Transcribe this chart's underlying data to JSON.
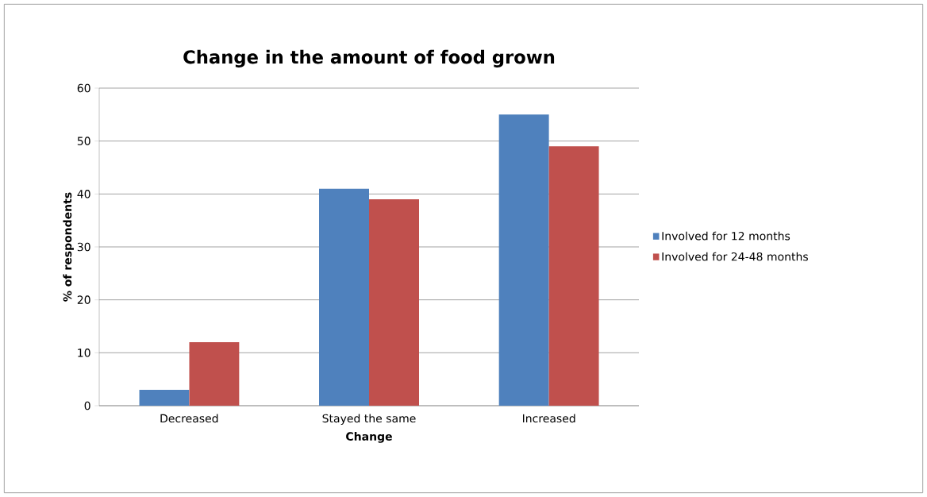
{
  "chart_data": {
    "type": "bar",
    "title": "Change in the amount of food grown",
    "xlabel": "Change",
    "ylabel": "% of respondents",
    "categories": [
      "Decreased",
      "Stayed the same",
      "Increased"
    ],
    "series": [
      {
        "name": "Involved for 12 months",
        "color": "#4f81bd",
        "values": [
          3,
          41,
          55
        ]
      },
      {
        "name": "Involved for 24-48 months",
        "color": "#c0504d",
        "values": [
          12,
          39,
          49
        ]
      }
    ],
    "ylim": [
      0,
      60
    ],
    "yticks": [
      0,
      10,
      20,
      30,
      40,
      50,
      60
    ],
    "grid": "y",
    "legend": "right"
  }
}
